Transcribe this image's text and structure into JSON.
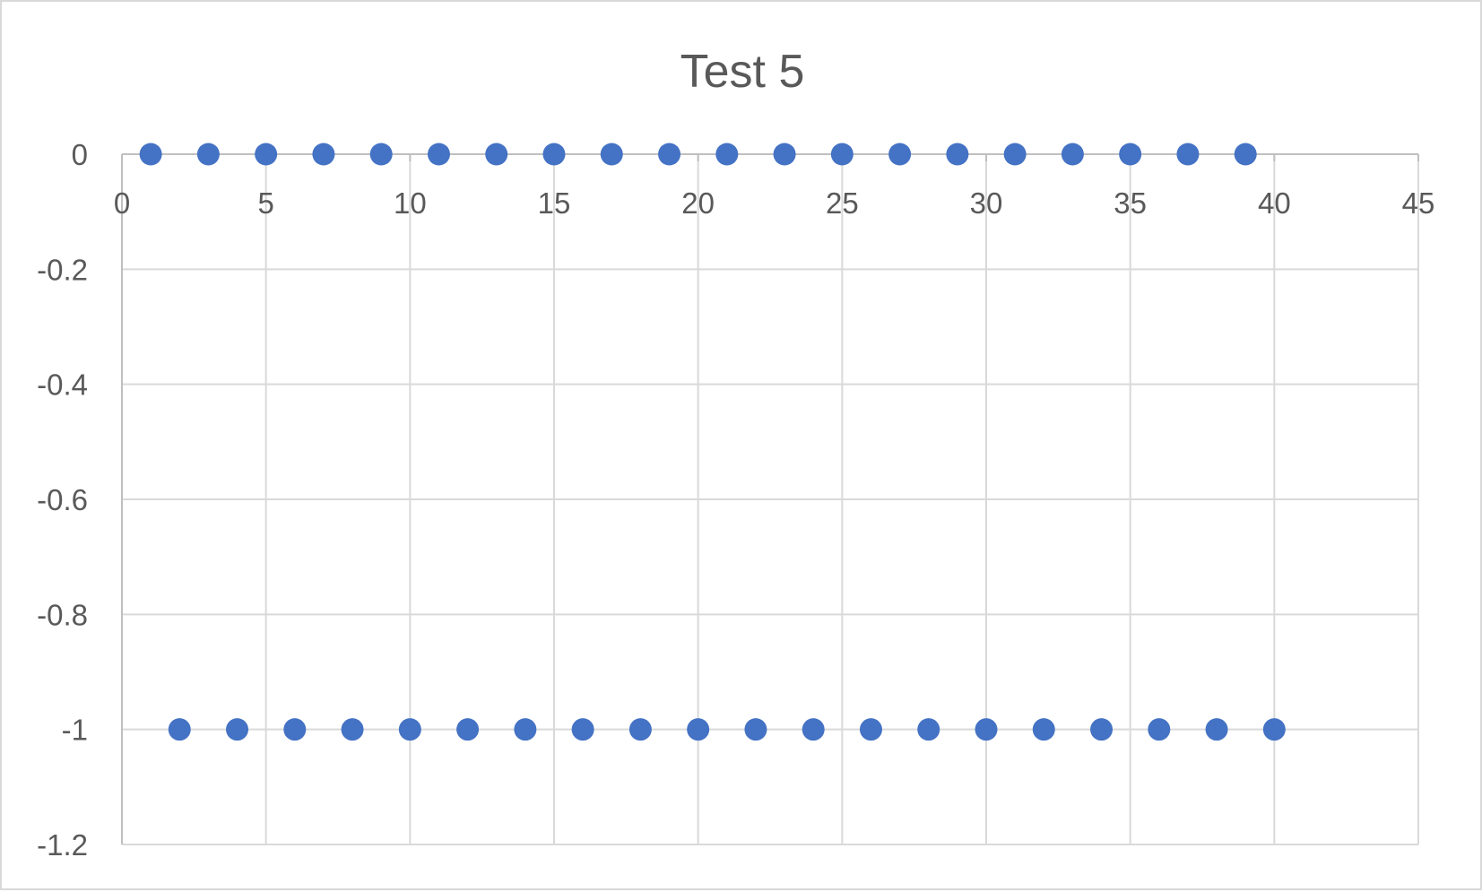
{
  "chart_data": {
    "type": "scatter",
    "title": "Test 5",
    "xlabel": "",
    "ylabel": "",
    "xlim": [
      0,
      45
    ],
    "ylim": [
      -1.2,
      0
    ],
    "x_ticks": [
      0,
      5,
      10,
      15,
      20,
      25,
      30,
      35,
      40,
      45
    ],
    "y_ticks": [
      0,
      -0.2,
      -0.4,
      -0.6,
      -0.8,
      -1,
      -1.2
    ],
    "x_tick_labels": [
      "0",
      "5",
      "10",
      "15",
      "20",
      "25",
      "30",
      "35",
      "40",
      "45"
    ],
    "y_tick_labels": [
      "0",
      "-0.2",
      "-0.4",
      "-0.6",
      "-0.8",
      "-1",
      "-1.2"
    ],
    "grid": true,
    "legend": "none",
    "marker_color": "#4472c4",
    "series": [
      {
        "points": [
          [
            1,
            0
          ],
          [
            2,
            -1
          ],
          [
            3,
            0
          ],
          [
            4,
            -1
          ],
          [
            5,
            0
          ],
          [
            6,
            -1
          ],
          [
            7,
            0
          ],
          [
            8,
            -1
          ],
          [
            9,
            0
          ],
          [
            10,
            -1
          ],
          [
            11,
            0
          ],
          [
            12,
            -1
          ],
          [
            13,
            0
          ],
          [
            14,
            -1
          ],
          [
            15,
            0
          ],
          [
            16,
            -1
          ],
          [
            17,
            0
          ],
          [
            18,
            -1
          ],
          [
            19,
            0
          ],
          [
            20,
            -1
          ],
          [
            21,
            0
          ],
          [
            22,
            -1
          ],
          [
            23,
            0
          ],
          [
            24,
            -1
          ],
          [
            25,
            0
          ],
          [
            26,
            -1
          ],
          [
            27,
            0
          ],
          [
            28,
            -1
          ],
          [
            29,
            0
          ],
          [
            30,
            -1
          ],
          [
            31,
            0
          ],
          [
            32,
            -1
          ],
          [
            33,
            0
          ],
          [
            34,
            -1
          ],
          [
            35,
            0
          ],
          [
            36,
            -1
          ],
          [
            37,
            0
          ],
          [
            38,
            -1
          ],
          [
            39,
            0
          ],
          [
            40,
            -1
          ]
        ]
      }
    ]
  }
}
